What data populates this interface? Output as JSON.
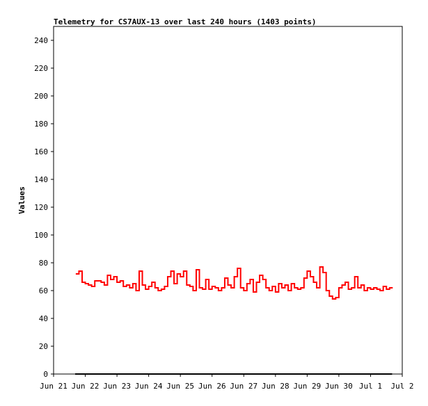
{
  "chart_data": {
    "type": "line",
    "title": "Telemetry for CS7AUX-13 over last 240 hours (1403 points)",
    "y_label": "Values",
    "xlim": [
      0,
      11
    ],
    "xticks": [
      {
        "value": 0,
        "label": "Jun 21"
      },
      {
        "value": 1,
        "label": "Jun 22"
      },
      {
        "value": 2,
        "label": "Jun 23"
      },
      {
        "value": 3,
        "label": "Jun 24"
      },
      {
        "value": 4,
        "label": "Jun 25"
      },
      {
        "value": 5,
        "label": "Jun 26"
      },
      {
        "value": 6,
        "label": "Jun 27"
      },
      {
        "value": 7,
        "label": "Jun 28"
      },
      {
        "value": 8,
        "label": "Jun 29"
      },
      {
        "value": 9,
        "label": "Jun 30"
      },
      {
        "value": 10,
        "label": "Jul 1"
      },
      {
        "value": 11,
        "label": "Jul 2"
      }
    ],
    "ylim": [
      0,
      250
    ],
    "yticks": [
      0,
      20,
      40,
      60,
      80,
      100,
      120,
      140,
      160,
      180,
      200,
      220,
      240
    ],
    "series": [
      {
        "color": "#ff0000",
        "x": [
          0.7,
          0.8,
          0.9,
          1.0,
          1.1,
          1.2,
          1.3,
          1.4,
          1.5,
          1.6,
          1.7,
          1.8,
          1.9,
          2.0,
          2.1,
          2.2,
          2.3,
          2.4,
          2.5,
          2.6,
          2.7,
          2.8,
          2.9,
          3.0,
          3.1,
          3.2,
          3.3,
          3.4,
          3.5,
          3.6,
          3.7,
          3.8,
          3.9,
          4.0,
          4.1,
          4.2,
          4.3,
          4.4,
          4.5,
          4.6,
          4.7,
          4.8,
          4.9,
          5.0,
          5.1,
          5.2,
          5.3,
          5.4,
          5.5,
          5.6,
          5.7,
          5.8,
          5.9,
          6.0,
          6.1,
          6.2,
          6.3,
          6.4,
          6.5,
          6.6,
          6.7,
          6.8,
          6.9,
          7.0,
          7.1,
          7.2,
          7.3,
          7.4,
          7.5,
          7.6,
          7.7,
          7.8,
          7.9,
          8.0,
          8.1,
          8.2,
          8.3,
          8.4,
          8.5,
          8.6,
          8.7,
          8.8,
          8.9,
          9.0,
          9.1,
          9.2,
          9.3,
          9.4,
          9.5,
          9.6,
          9.7,
          9.8,
          9.9,
          10.0,
          10.1,
          10.2,
          10.3,
          10.4,
          10.5,
          10.6,
          10.7
        ],
        "values": [
          72,
          74,
          66,
          65,
          64,
          63,
          67,
          67,
          66,
          64,
          71,
          68,
          70,
          66,
          67,
          63,
          64,
          62,
          65,
          60,
          74,
          64,
          61,
          63,
          66,
          62,
          60,
          61,
          63,
          70,
          74,
          65,
          72,
          70,
          74,
          64,
          63,
          60,
          75,
          62,
          61,
          68,
          61,
          63,
          62,
          60,
          62,
          69,
          64,
          62,
          70,
          76,
          62,
          60,
          65,
          68,
          59,
          66,
          71,
          68,
          62,
          60,
          63,
          59,
          65,
          62,
          64,
          60,
          65,
          62,
          61,
          62,
          69,
          74,
          70,
          66,
          62,
          77,
          73,
          60,
          56,
          54,
          55,
          62,
          64,
          66,
          61,
          62,
          70,
          62,
          64,
          60,
          62,
          61,
          62,
          61,
          60,
          63,
          61,
          62,
          62
        ]
      },
      {
        "color": "#000000",
        "x": [
          0.68,
          10.68
        ],
        "values": [
          0,
          0
        ]
      }
    ]
  }
}
